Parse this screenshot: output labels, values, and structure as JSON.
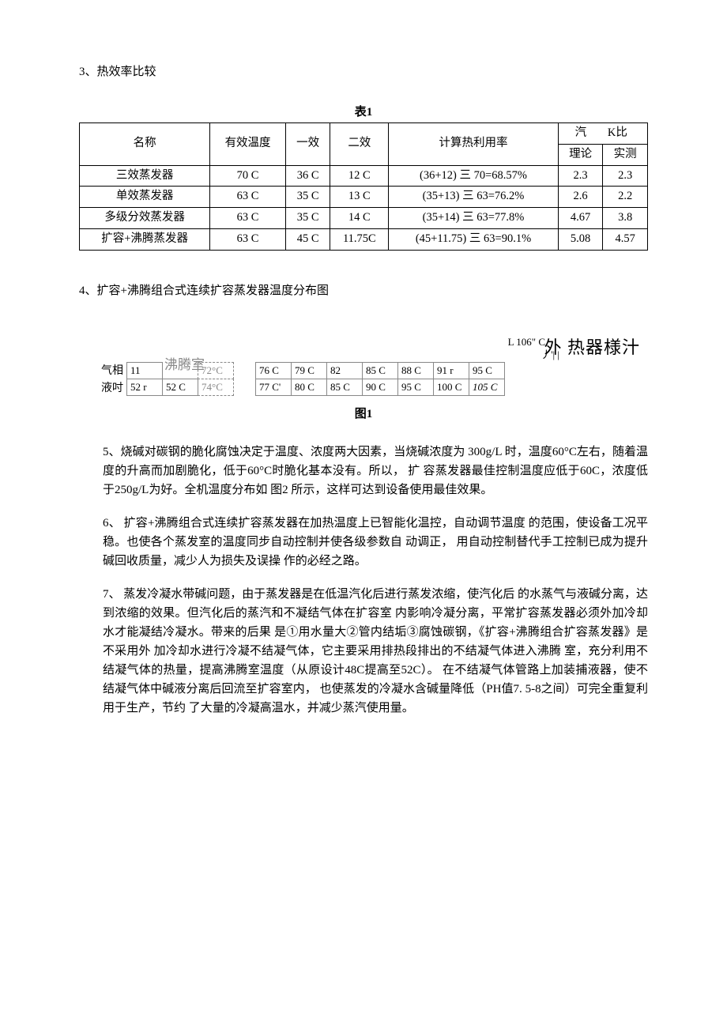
{
  "sec3": {
    "heading": "3、热效率比较"
  },
  "table1": {
    "caption": "表1",
    "head": {
      "name": "名称",
      "eff_temp": "有效温度",
      "e1": "一效",
      "e2": "二效",
      "calc": "计算热利用率",
      "ratio": "汽",
      "ratio2": "K比",
      "theory": "理论",
      "measured": "实测"
    },
    "rows": [
      {
        "name": "三效蒸发器",
        "eff_temp": "70 C",
        "e1": "36 C",
        "e2": "12 C",
        "calc": "(36+12) 三  70=68.57%",
        "theory": "2.3",
        "measured": "2.3"
      },
      {
        "name": "单效蒸发器",
        "eff_temp": "63 C",
        "e1": "35 C",
        "e2": "13 C",
        "calc": "(35+13) 三  63=76.2%",
        "theory": "2.6",
        "measured": "2.2"
      },
      {
        "name": "多级分效蒸发器",
        "eff_temp": "63 C",
        "e1": "35 C",
        "e2": "14 C",
        "calc": "(35+14) 三  63=77.8%",
        "theory": "4.67",
        "measured": "3.8"
      },
      {
        "name": "扩容+沸腾蒸发器",
        "eff_temp": "63 C",
        "e1": "45 C",
        "e2": "11.75C",
        "calc": "(45+11.75) 三  63=90.1%",
        "theory": "5.08",
        "measured": "4.57"
      }
    ]
  },
  "sec4": {
    "heading": "4、扩容+沸腾组合式连续扩容蒸发器温度分布图"
  },
  "diagram": {
    "overlay_right": "外         热器様汁",
    "overlay_small1": "L 106\" C",
    "overlay_small2": "丿'|   |",
    "boil_label": "沸腾室",
    "row_labels": {
      "gas": "气相",
      "liquid": "液吋"
    },
    "left_block": {
      "top": [
        "11",
        "",
        "72°C"
      ],
      "bot": [
        "52 r",
        "52 C",
        "74°C"
      ]
    },
    "right_block": {
      "top": [
        "76 C",
        "79 C",
        "82",
        "85 C",
        "88 C",
        "91 r",
        "95 C"
      ],
      "bot": [
        "77 C'",
        "80 C",
        "85 C",
        "90 C",
        "95 C",
        "100 C",
        "105 C"
      ]
    },
    "figure_caption": "图1"
  },
  "para5": "5、烧碱对碳钢的脆化腐蚀决定于温度、浓度两大因素，当烧碱浓度为 300g/L 时，温度60°C左右，随着温度的升高而加剧脆化，低于60°C时脆化基本没有。所以，  扩 容蒸发器最佳控制温度应低于60C，浓度低于250g/L为好。全机温度分布如 图2 所示，这样可达到设备使用最佳效果。",
  "para6": "6、 扩容+沸腾组合式连续扩容蒸发器在加热温度上已智能化温控，自动调节温度 的范围，使设备工况平稳。也使各个蒸发室的温度同步自动控制并使各级参数自  动调正， 用自动控制替代手工控制已成为提升碱回收质量，减少人为损失及误操  作的必经之路。",
  "para7": "7、 蒸发冷凝水带碱问题，由于蒸发器是在低温汽化后进行蒸发浓缩，使汽化后  的水蒸气与液碱分离，达到浓缩的效果。但汽化后的蒸汽和不凝结气体在扩容室  内影响冷凝分离，平常扩容蒸发器必须外加冷却水才能凝结冷凝水。带来的后果  是①用水量大②管内结垢③腐蚀碳钢，《扩容+沸腾组合扩容蒸发器》是不采用外  加冷却水进行冷凝不结凝气体，它主要采用排热段排出的不结凝气体进入沸腾  室，充分利用不结凝气体的热量，提高沸腾室温度（从原设计48C提高至52C）。 在不结凝气体管路上加装捕液器，使不结凝气体中碱液分离后回流至扩容室内，     也使蒸发的冷凝水含碱量降低（PH值7. 5-8之间）可完全重复利用于生产，节约    了大量的冷凝高温水，并减少蒸汽使用量。"
}
